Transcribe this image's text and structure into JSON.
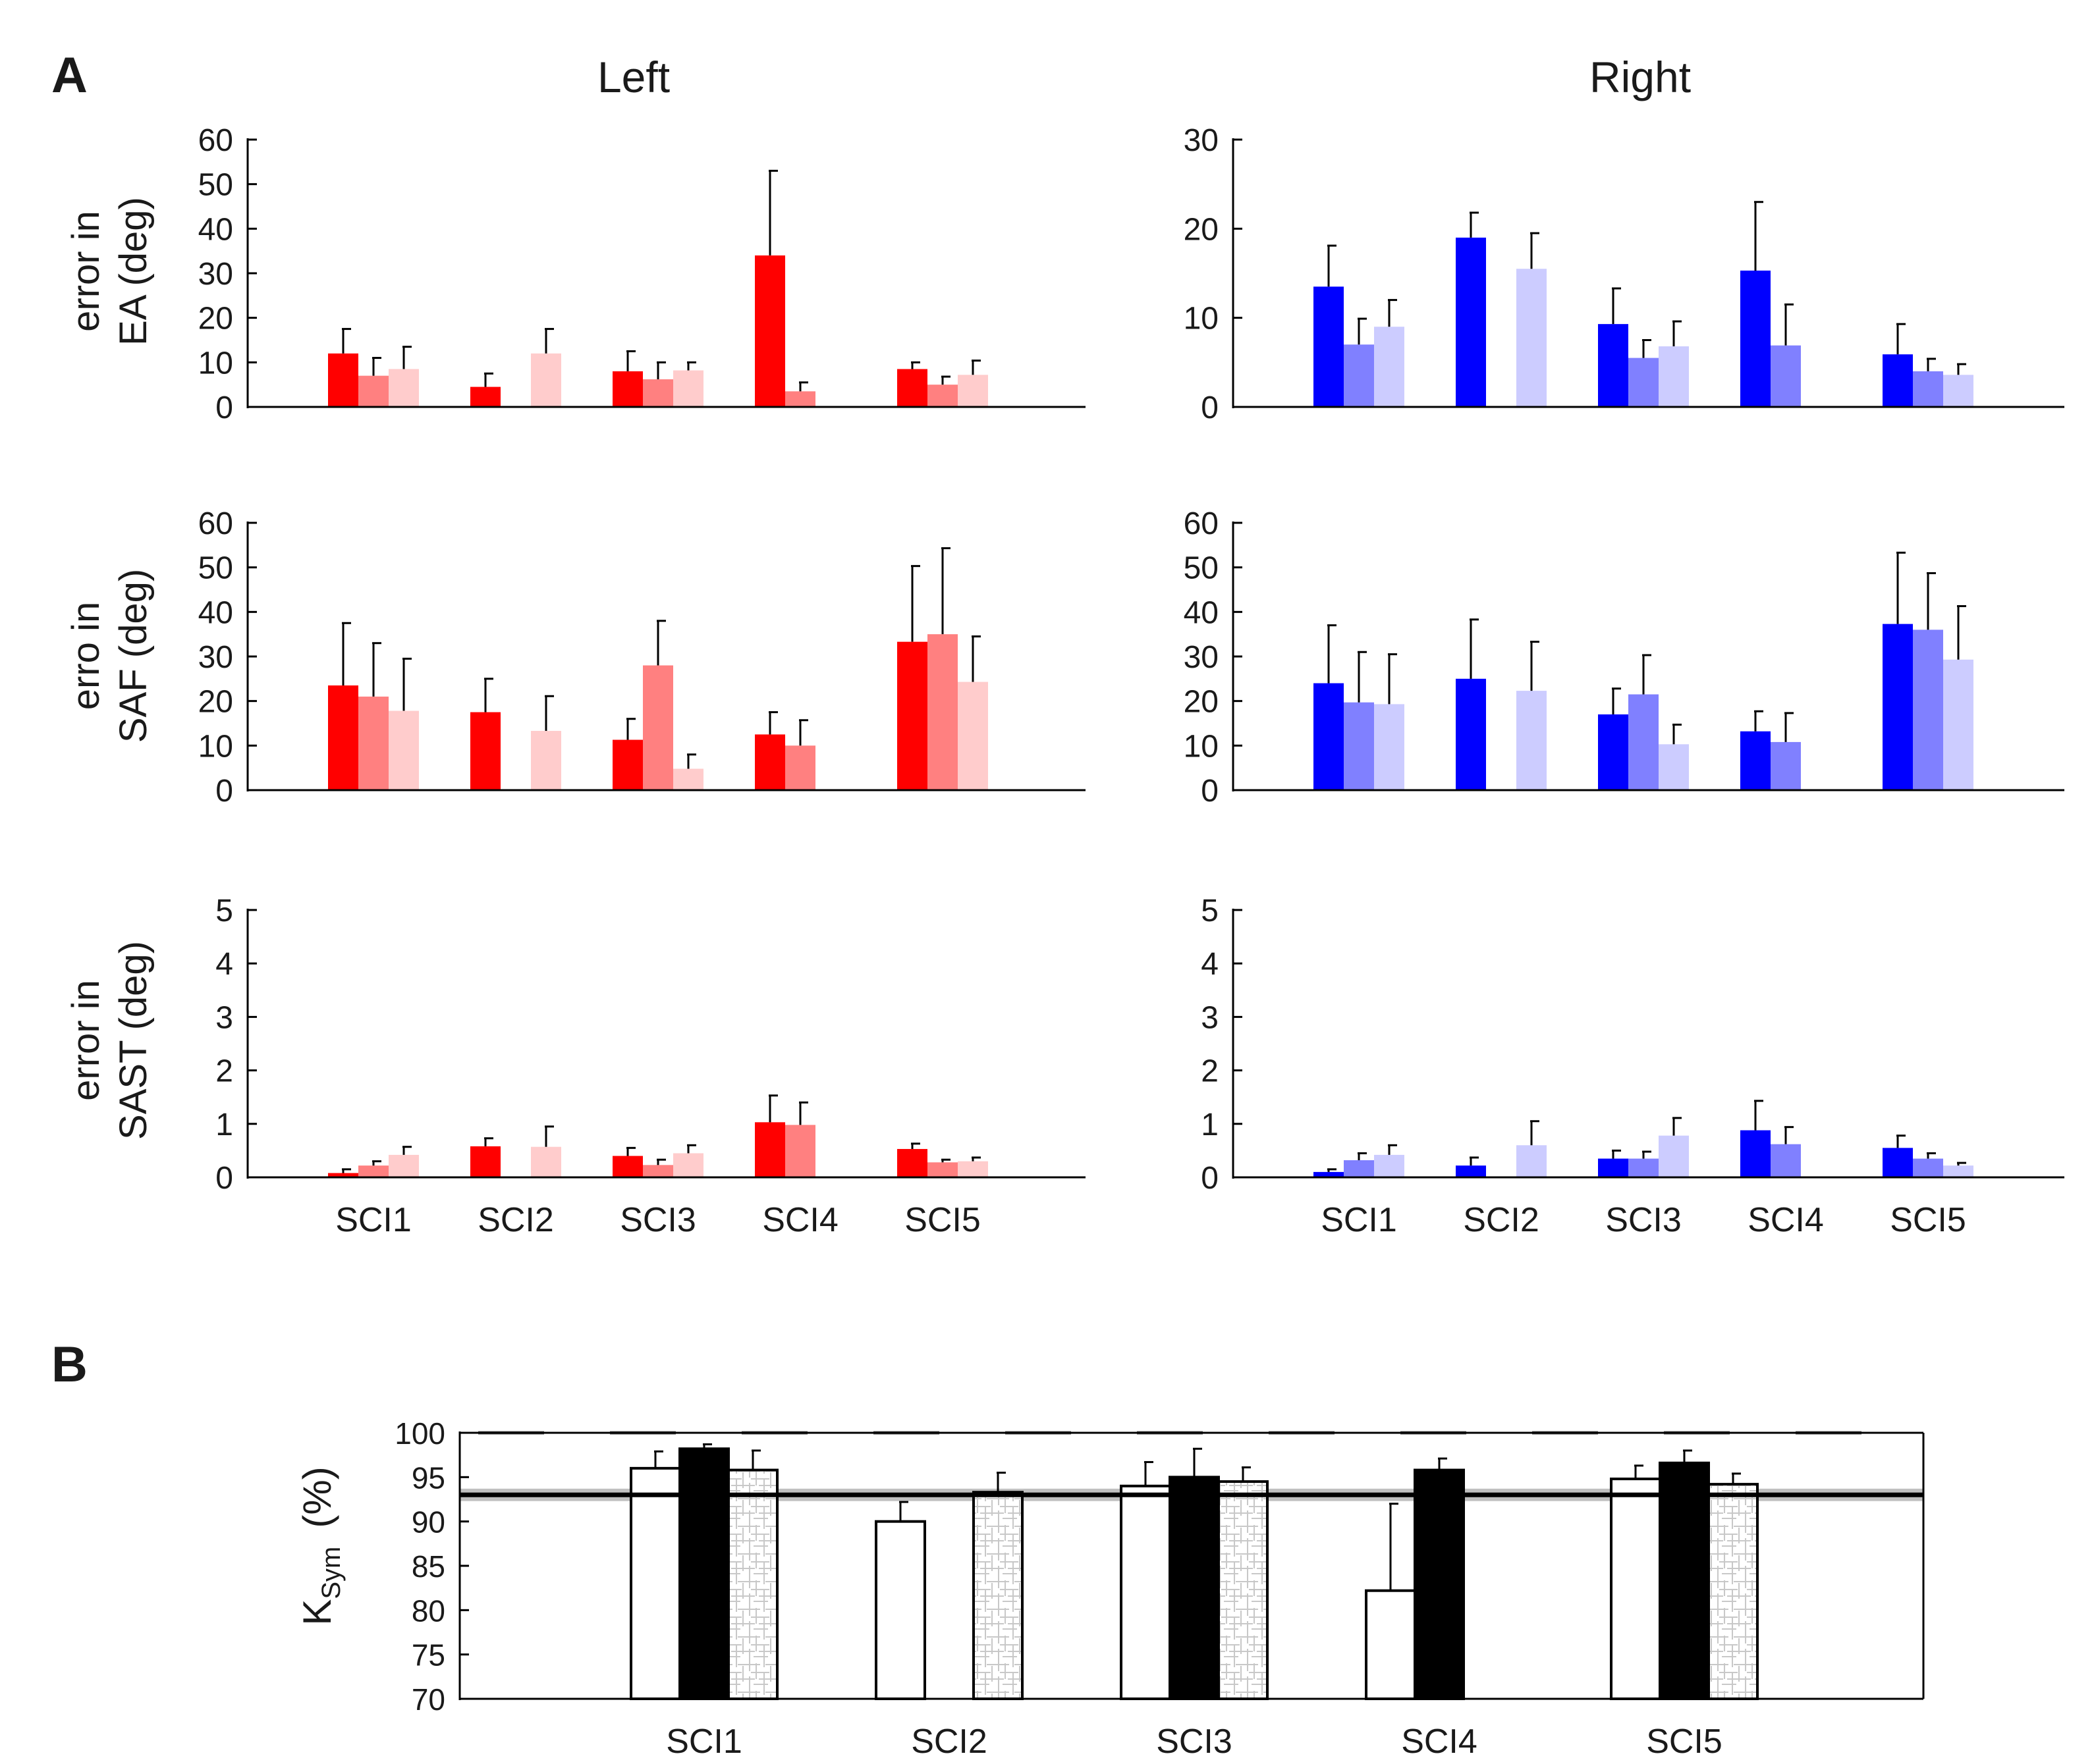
{
  "panel_labels": {
    "a": "A",
    "b": "B"
  },
  "column_titles": {
    "left": "Left",
    "right": "Right"
  },
  "row_labels": [
    {
      "line1": "error in",
      "line2": "EA (deg)"
    },
    {
      "line1": "erro in",
      "line2": "SAF (deg)"
    },
    {
      "line1": "error in",
      "line2": "SAST (deg)"
    }
  ],
  "colors": {
    "left": [
      "#ff0000",
      "#ff8080",
      "#ffcccc"
    ],
    "right": [
      "#0000ff",
      "#8080ff",
      "#ccccff"
    ],
    "b_fills": [
      "#ffffff",
      "#000000",
      "#ffffff"
    ],
    "b_hatch": "#c8c8c8",
    "reference_line": "#000000",
    "reference_band": "#c0c0c0",
    "dashed_line": "#555555"
  },
  "b_ylabel": {
    "main": "K",
    "sub": "Sym",
    "unit": "(%)"
  },
  "chart_data": [
    {
      "id": "ea-left",
      "type": "bar",
      "side": "left",
      "categories": [
        "SCI1",
        "SCI2",
        "SCI3",
        "SCI4",
        "SCI5"
      ],
      "ylim": [
        0,
        60
      ],
      "yticks": [
        0,
        10,
        20,
        30,
        40,
        50,
        60
      ],
      "series": [
        {
          "values": [
            12,
            4.5,
            8,
            34,
            8.5
          ],
          "errors": [
            5.5,
            3,
            4.5,
            19,
            1.5
          ]
        },
        {
          "values": [
            7,
            null,
            6.2,
            3.5,
            5
          ],
          "errors": [
            4,
            null,
            3.8,
            2,
            1.8
          ]
        },
        {
          "values": [
            8.5,
            12,
            8.2,
            null,
            7.2
          ],
          "errors": [
            5,
            5.5,
            1.8,
            null,
            3.2
          ]
        }
      ]
    },
    {
      "id": "ea-right",
      "type": "bar",
      "side": "right",
      "categories": [
        "SCI1",
        "SCI2",
        "SCI3",
        "SCI4",
        "SCI5"
      ],
      "ylim": [
        0,
        30
      ],
      "yticks": [
        0,
        10,
        20,
        30
      ],
      "series": [
        {
          "values": [
            13.5,
            19,
            9.3,
            15.3,
            5.9
          ],
          "errors": [
            4.6,
            2.8,
            4,
            7.7,
            3.4
          ]
        },
        {
          "values": [
            7,
            null,
            5.5,
            6.9,
            4
          ],
          "errors": [
            2.9,
            null,
            2,
            4.6,
            1.4
          ]
        },
        {
          "values": [
            9,
            15.5,
            6.8,
            null,
            3.6
          ],
          "errors": [
            3,
            4,
            2.8,
            null,
            1.2
          ]
        }
      ]
    },
    {
      "id": "saf-left",
      "type": "bar",
      "side": "left",
      "categories": [
        "SCI1",
        "SCI2",
        "SCI3",
        "SCI4",
        "SCI5"
      ],
      "ylim": [
        0,
        60
      ],
      "yticks": [
        0,
        10,
        20,
        30,
        40,
        50,
        60
      ],
      "series": [
        {
          "values": [
            23.5,
            17.5,
            11.3,
            12.5,
            33.3
          ],
          "errors": [
            14,
            7.5,
            4.7,
            5,
            17
          ]
        },
        {
          "values": [
            21,
            null,
            28,
            10,
            35
          ],
          "errors": [
            12,
            null,
            10,
            5.7,
            19.3
          ]
        },
        {
          "values": [
            17.8,
            13.3,
            4.8,
            null,
            24.3
          ],
          "errors": [
            11.7,
            7.8,
            3.2,
            null,
            10.2
          ]
        }
      ]
    },
    {
      "id": "saf-right",
      "type": "bar",
      "side": "right",
      "categories": [
        "SCI1",
        "SCI2",
        "SCI3",
        "SCI4",
        "SCI5"
      ],
      "ylim": [
        0,
        60
      ],
      "yticks": [
        0,
        10,
        20,
        30,
        40,
        50,
        60
      ],
      "series": [
        {
          "values": [
            24,
            25,
            17,
            13.2,
            37.3
          ],
          "errors": [
            13,
            13.3,
            5.8,
            4.5,
            16
          ]
        },
        {
          "values": [
            19.7,
            null,
            21.5,
            10.8,
            36
          ],
          "errors": [
            11.3,
            null,
            8.8,
            6.5,
            12.7
          ]
        },
        {
          "values": [
            19.3,
            22.3,
            10.3,
            null,
            29.3
          ],
          "errors": [
            11.2,
            11,
            4.4,
            null,
            12
          ]
        }
      ]
    },
    {
      "id": "sast-left",
      "type": "bar",
      "side": "left",
      "categories": [
        "SCI1",
        "SCI2",
        "SCI3",
        "SCI4",
        "SCI5"
      ],
      "ylim": [
        0,
        5
      ],
      "yticks": [
        0,
        1,
        2,
        3,
        4,
        5
      ],
      "series": [
        {
          "values": [
            0.08,
            0.58,
            0.4,
            1.03,
            0.53
          ],
          "errors": [
            0.07,
            0.15,
            0.15,
            0.5,
            0.1
          ]
        },
        {
          "values": [
            0.22,
            null,
            0.23,
            0.98,
            0.28
          ],
          "errors": [
            0.08,
            null,
            0.1,
            0.42,
            0.05
          ]
        },
        {
          "values": [
            0.42,
            0.57,
            0.45,
            null,
            0.3
          ],
          "errors": [
            0.15,
            0.38,
            0.15,
            null,
            0.07
          ]
        }
      ]
    },
    {
      "id": "sast-right",
      "type": "bar",
      "side": "right",
      "categories": [
        "SCI1",
        "SCI2",
        "SCI3",
        "SCI4",
        "SCI5"
      ],
      "ylim": [
        0,
        5
      ],
      "yticks": [
        0,
        1,
        2,
        3,
        4,
        5
      ],
      "series": [
        {
          "values": [
            0.1,
            0.22,
            0.35,
            0.88,
            0.55
          ],
          "errors": [
            0.05,
            0.15,
            0.15,
            0.55,
            0.23
          ]
        },
        {
          "values": [
            0.32,
            null,
            0.35,
            0.62,
            0.35
          ],
          "errors": [
            0.13,
            null,
            0.13,
            0.32,
            0.1
          ]
        },
        {
          "values": [
            0.42,
            0.6,
            0.78,
            null,
            0.22
          ],
          "errors": [
            0.18,
            0.45,
            0.33,
            null,
            0.05
          ]
        }
      ]
    },
    {
      "id": "ksym",
      "type": "bar",
      "panel": "B",
      "categories": [
        "SCI1",
        "SCI2",
        "SCI3",
        "SCI4",
        "SCI5"
      ],
      "ylim": [
        70,
        100
      ],
      "yticks": [
        70,
        75,
        80,
        85,
        90,
        95,
        100
      ],
      "reference_line": 93,
      "reference_band": [
        92.3,
        93.7
      ],
      "dashed_line": 100,
      "series": [
        {
          "style": "open",
          "values": [
            96,
            90,
            94,
            82.2,
            94.8
          ],
          "errors": [
            1.9,
            2.2,
            2.7,
            9.8,
            1.5
          ]
        },
        {
          "style": "filled",
          "values": [
            98.2,
            null,
            95,
            95.8,
            96.6
          ],
          "errors": [
            0.5,
            null,
            3.2,
            1.3,
            1.4
          ]
        },
        {
          "style": "hatched",
          "values": [
            95.8,
            93.3,
            94.5,
            null,
            94.2
          ],
          "errors": [
            2.2,
            2.2,
            1.6,
            null,
            1.2
          ]
        }
      ]
    }
  ]
}
